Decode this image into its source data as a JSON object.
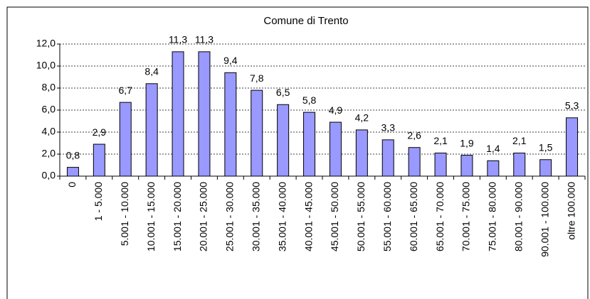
{
  "chart_data": {
    "type": "bar",
    "title": "Comune di Trento",
    "categories": [
      "0",
      "1 - 5.000",
      "5.001 - 10.000",
      "10.001 - 15.000",
      "15.001 - 20.000",
      "20.001 - 25.000",
      "25.001 - 30.000",
      "30.001 - 35.000",
      "35.001 - 40.000",
      "40.001 - 45.000",
      "45.001 - 50.000",
      "50.001 - 55.000",
      "55.001 - 60.000",
      "60.001 - 65.000",
      "65.001 - 70.000",
      "70.001 - 75.000",
      "75.001 - 80.000",
      "80.001 - 90.000",
      "90.001 - 100.000",
      "oltre 100.000"
    ],
    "values": [
      0.8,
      2.9,
      6.7,
      8.4,
      11.3,
      11.3,
      9.4,
      7.8,
      6.5,
      5.8,
      4.9,
      4.2,
      3.3,
      2.6,
      2.1,
      1.9,
      1.4,
      2.1,
      1.5,
      5.3
    ],
    "value_labels": [
      "0,8",
      "2,9",
      "6,7",
      "8,4",
      "11,3",
      "11,3",
      "9,4",
      "7,8",
      "6,5",
      "5,8",
      "4,9",
      "4,2",
      "3,3",
      "2,6",
      "2,1",
      "1,9",
      "1,4",
      "2,1",
      "1,5",
      "5,3"
    ],
    "color": "#9999ff",
    "ylim": [
      0,
      12
    ],
    "yticks": [
      {
        "value": 0,
        "label": "0,0"
      },
      {
        "value": 2,
        "label": "2,0"
      },
      {
        "value": 4,
        "label": "4,0"
      },
      {
        "value": 6,
        "label": "6,0"
      },
      {
        "value": 8,
        "label": "8,0"
      },
      {
        "value": 10,
        "label": "10,0"
      },
      {
        "value": 12,
        "label": "12,0"
      }
    ],
    "grid": true
  }
}
